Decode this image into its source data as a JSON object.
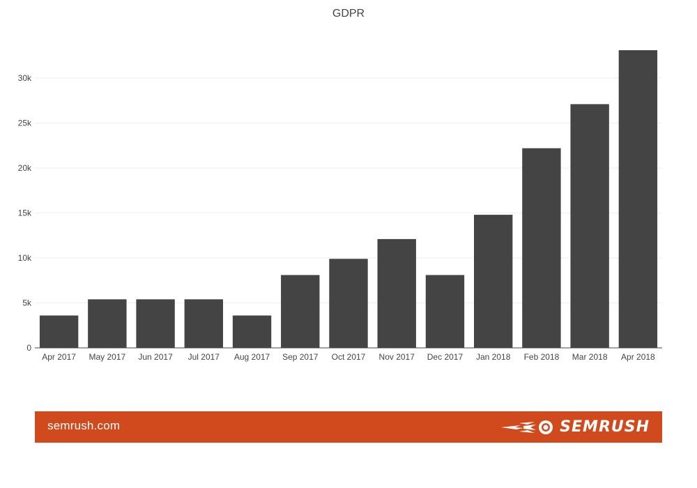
{
  "chart_data": {
    "type": "bar",
    "title": "GDPR",
    "xlabel": "",
    "ylabel": "",
    "categories": [
      "Apr 2017",
      "May 2017",
      "Jun 2017",
      "Jul 2017",
      "Aug 2017",
      "Sep 2017",
      "Oct 2017",
      "Nov 2017",
      "Dec 2017",
      "Jan 2018",
      "Feb 2018",
      "Mar 2018",
      "Apr 2018"
    ],
    "values": [
      3600,
      5400,
      5400,
      5400,
      3600,
      8100,
      9900,
      12100,
      8100,
      14800,
      22200,
      27100,
      33100
    ],
    "ylim": [
      0,
      33100
    ],
    "yticks": [
      0,
      5000,
      10000,
      15000,
      20000,
      25000,
      30000
    ],
    "ytick_labels": [
      "0",
      "5k",
      "10k",
      "15k",
      "20k",
      "25k",
      "30k"
    ],
    "grid": true,
    "legend": "none",
    "bar_color": "#444444"
  },
  "footer": {
    "site_label": "semrush.com",
    "logo_text": "SEMRUSH",
    "logo_icon": "semrush-fireball-icon",
    "background_color": "#d04a1e"
  }
}
